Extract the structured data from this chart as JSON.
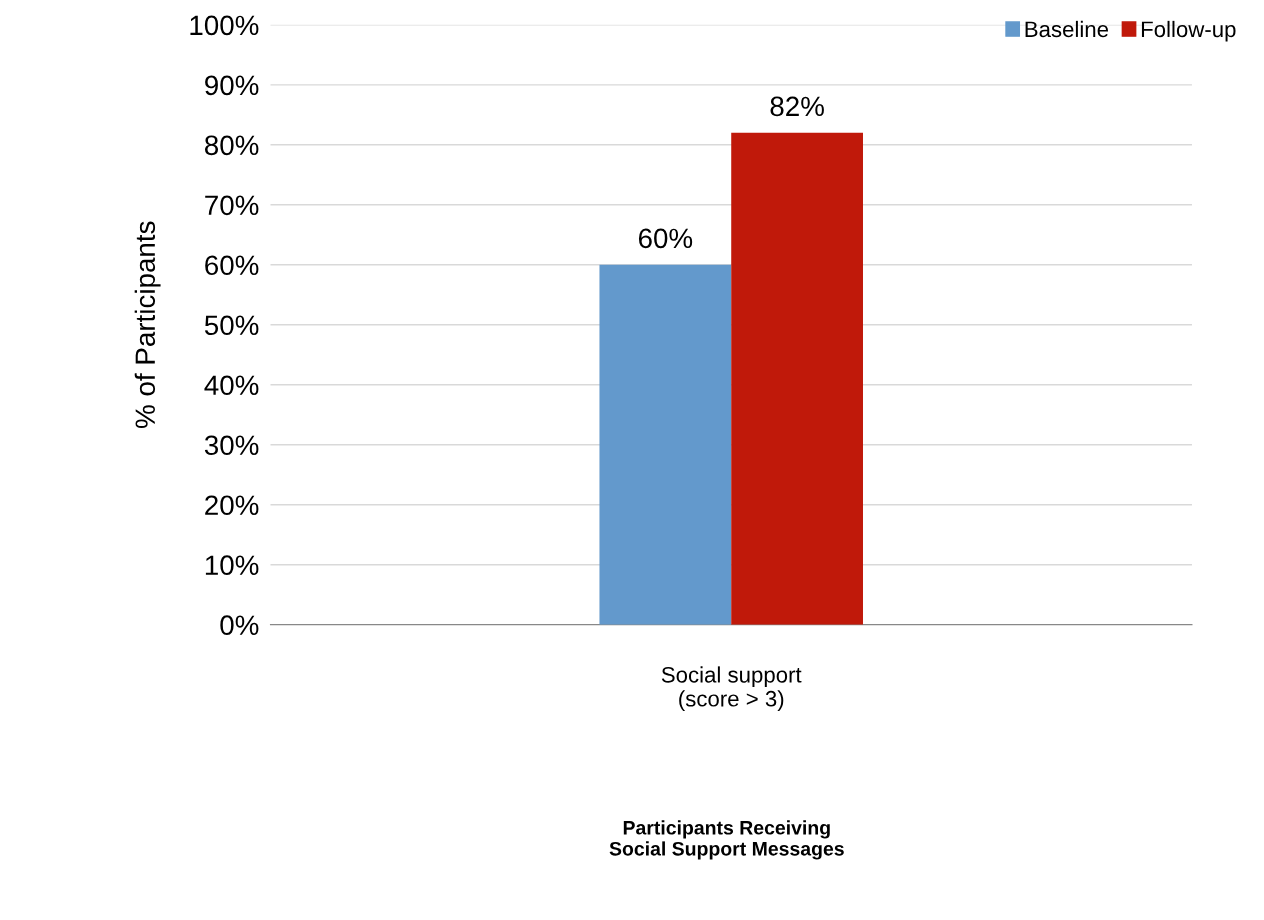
{
  "chart_data": {
    "type": "bar",
    "categories": [
      "Social support\n(score > 3)"
    ],
    "series": [
      {
        "name": "Baseline",
        "color": "#6399cc",
        "values": [
          60
        ],
        "value_labels": [
          "60%"
        ]
      },
      {
        "name": "Follow-up",
        "color": "#c0190a",
        "values": [
          82
        ],
        "value_labels": [
          "82%"
        ]
      }
    ],
    "annotations": [
      "Participants Receiving\nSocial Support Messages"
    ],
    "ylabel": "% of Participants",
    "ylim": [
      0,
      100
    ],
    "yticks": [
      {
        "value": 0,
        "label": "0%"
      },
      {
        "value": 10,
        "label": "10%"
      },
      {
        "value": 20,
        "label": "20%"
      },
      {
        "value": 30,
        "label": "30%"
      },
      {
        "value": 40,
        "label": "40%"
      },
      {
        "value": 50,
        "label": "50%"
      },
      {
        "value": 60,
        "label": "60%"
      },
      {
        "value": 70,
        "label": "70%"
      },
      {
        "value": 80,
        "label": "80%"
      },
      {
        "value": 90,
        "label": "90%"
      },
      {
        "value": 100,
        "label": "100%"
      }
    ],
    "grid": "y",
    "legend": "top right"
  }
}
